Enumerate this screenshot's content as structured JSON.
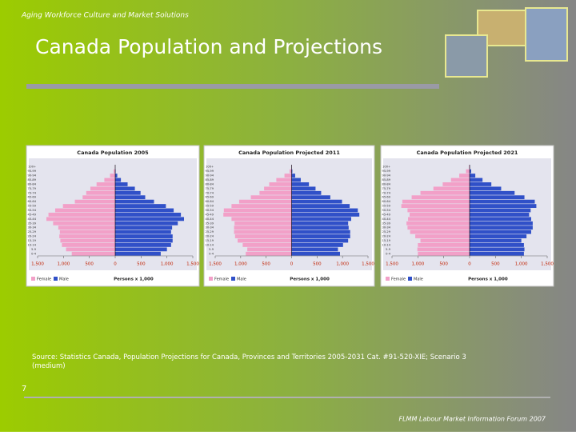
{
  "header": "Aging Workforce Culture and Market Solutions",
  "title": "Canada Population and Projections",
  "source": "Source:  Statistics Canada, Population Projections for Canada, Provinces and Territories 2005-2031 Cat. #91-520-XIE; Scenario 3 (medium)",
  "page_number": "7",
  "footer": "FLMM Labour Market Information Forum 2007",
  "chart_data": [
    {
      "type": "pyramid",
      "title": "Canada Population 2005",
      "x_label": "Persons x 1,000",
      "categories": [
        "0-4",
        "5-9",
        "10-14",
        "15-19",
        "20-24",
        "25-29",
        "30-34",
        "35-39",
        "40-44",
        "45-49",
        "50-54",
        "55-59",
        "60-64",
        "65-69",
        "70-74",
        "75-79",
        "80-84",
        "85-89",
        "90-94",
        "95-99",
        "100+"
      ],
      "series": [
        {
          "name": "Female",
          "color": "#f2a0c8",
          "values": [
            -840,
            -950,
            -1030,
            -1060,
            -1080,
            -1070,
            -1100,
            -1200,
            -1330,
            -1290,
            -1160,
            -1010,
            -780,
            -630,
            -560,
            -480,
            -360,
            -210,
            -100,
            -30,
            -5
          ]
        },
        {
          "name": "Male",
          "color": "#3050c8",
          "values": [
            880,
            1000,
            1080,
            1110,
            1110,
            1080,
            1100,
            1210,
            1330,
            1270,
            1130,
            980,
            750,
            580,
            490,
            380,
            240,
            110,
            40,
            8,
            1
          ]
        }
      ],
      "xlim": [
        -1500,
        1500
      ],
      "xticks": [
        {
          "value": -1500,
          "label": "1,500"
        },
        {
          "value": -1000,
          "label": "1,000"
        },
        {
          "value": -500,
          "label": "500"
        },
        0,
        500,
        {
          "value": 1000,
          "label": "1,000"
        },
        {
          "value": 1500,
          "label": "1,500"
        }
      ]
    },
    {
      "type": "pyramid",
      "title": "Canada Population Projected 2011",
      "x_label": "Persons x 1,000",
      "categories": [
        "0-4",
        "5-9",
        "10-14",
        "15-19",
        "20-24",
        "25-29",
        "30-34",
        "35-39",
        "40-44",
        "45-49",
        "50-54",
        "55-59",
        "60-64",
        "65-69",
        "70-74",
        "75-79",
        "80-84",
        "85-89",
        "90-94",
        "95-99",
        "100+"
      ],
      "series": [
        {
          "name": "Female",
          "color": "#f2a0c8",
          "values": [
            -900,
            -870,
            -960,
            -1060,
            -1110,
            -1130,
            -1130,
            -1120,
            -1180,
            -1340,
            -1330,
            -1180,
            -1030,
            -800,
            -630,
            -540,
            -440,
            -300,
            -140,
            -40,
            -7
          ]
        },
        {
          "name": "Male",
          "color": "#3050c8",
          "values": [
            950,
            910,
            1010,
            1110,
            1150,
            1150,
            1120,
            1110,
            1170,
            1330,
            1300,
            1140,
            990,
            760,
            580,
            470,
            340,
            180,
            70,
            15,
            2
          ]
        }
      ],
      "xlim": [
        -1500,
        1500
      ],
      "xticks": [
        {
          "value": -1500,
          "label": "1,500"
        },
        {
          "value": -1000,
          "label": "1,000"
        },
        {
          "value": -500,
          "label": "500"
        },
        0,
        500,
        {
          "value": 1000,
          "label": "1,000"
        },
        {
          "value": 1500,
          "label": "1,500"
        }
      ]
    },
    {
      "type": "pyramid",
      "title": "Canada Population Projected 2021",
      "x_label": "Persons x 1,000",
      "categories": [
        "0-4",
        "5-9",
        "10-14",
        "15-19",
        "20-24",
        "25-29",
        "30-34",
        "35-39",
        "40-44",
        "45-49",
        "50-54",
        "55-59",
        "60-64",
        "65-69",
        "70-74",
        "75-79",
        "80-84",
        "85-89",
        "90-94",
        "95-99",
        "100+"
      ],
      "series": [
        {
          "name": "Female",
          "color": "#f2a0c8",
          "values": [
            -1000,
            -1010,
            -1000,
            -950,
            -1050,
            -1150,
            -1200,
            -1220,
            -1190,
            -1160,
            -1200,
            -1320,
            -1300,
            -1120,
            -950,
            -700,
            -520,
            -360,
            -200,
            -70,
            -12
          ]
        },
        {
          "name": "Male",
          "color": "#3050c8",
          "values": [
            1050,
            1060,
            1050,
            1000,
            1100,
            1190,
            1220,
            1220,
            1190,
            1150,
            1180,
            1290,
            1260,
            1060,
            870,
            610,
            420,
            250,
            110,
            30,
            4
          ]
        }
      ],
      "xlim": [
        -1500,
        1500
      ],
      "xticks": [
        {
          "value": -1500,
          "label": "1,500"
        },
        {
          "value": -1000,
          "label": "1,000"
        },
        {
          "value": -500,
          "label": "500"
        },
        0,
        500,
        {
          "value": 1000,
          "label": "1,000"
        },
        {
          "value": 1500,
          "label": "1,500"
        }
      ]
    }
  ]
}
